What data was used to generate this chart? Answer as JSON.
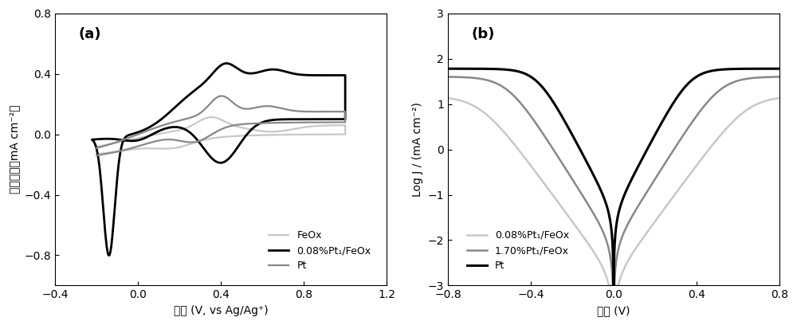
{
  "panel_a": {
    "label": "(a)",
    "xlabel": "电压 (V, vs Ag/Ag⁺)",
    "ylabel": "电流密度（mA cm⁻²）",
    "xlim": [
      -0.4,
      1.2
    ],
    "ylim": [
      -1.0,
      0.6
    ],
    "yticks": [
      -0.8,
      -0.4,
      0.0,
      0.4,
      0.8
    ],
    "xticks": [
      -0.4,
      0.0,
      0.4,
      0.8,
      1.2
    ],
    "legend": [
      "FeOx",
      "0.08%Pt₁/FeOx",
      "Pt"
    ],
    "color_feox": "#c8c8c8",
    "color_black": "#000000",
    "color_pt": "#888888"
  },
  "panel_b": {
    "label": "(b)",
    "xlabel": "电压 (V)",
    "ylabel": "Log J / (mA cm⁻²)",
    "xlim": [
      -0.8,
      0.8
    ],
    "ylim": [
      -3,
      3
    ],
    "yticks": [
      -3,
      -2,
      -1,
      0,
      1,
      2,
      3
    ],
    "xticks": [
      -0.8,
      -0.4,
      0.0,
      0.4,
      0.8
    ],
    "legend": [
      "0.08%Pt₁/FeOx",
      "1.70%Pt₁/FeOx",
      "Pt"
    ],
    "color_008": "#c8c8c8",
    "color_170": "#888888",
    "color_pt": "#000000"
  }
}
